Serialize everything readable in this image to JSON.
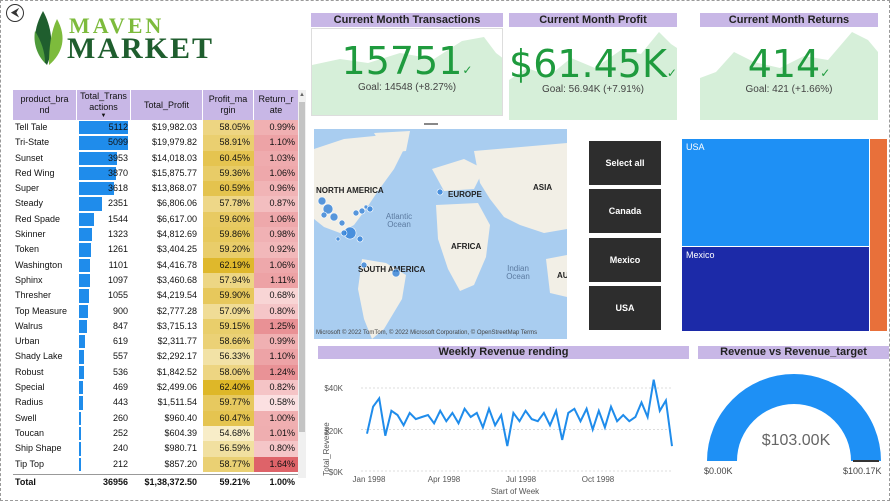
{
  "nav": {
    "back_glyph": "⮜"
  },
  "logo": {
    "line1": "MAVEN",
    "line2": "MARKET"
  },
  "table": {
    "headers": [
      "product_brand",
      "Total_Transactions",
      "Total_Profit",
      "Profit_margin",
      "Return_rate"
    ],
    "header_display": [
      "product_bra nd",
      "Total_Trans actions",
      "Total_Profit",
      "Profit_ma rgin",
      "Return_r ate"
    ],
    "sort_glyph": "▼",
    "max_transactions": 5112,
    "rows": [
      {
        "brand": "Tell Tale",
        "tx": "5112",
        "tx_num": 5112,
        "profit": "$19,982.03",
        "margin": "58.05%",
        "margin_num": 58.05,
        "ret": "0.99%",
        "ret_num": 0.99
      },
      {
        "brand": "Tri-State",
        "tx": "5099",
        "tx_num": 5099,
        "profit": "$19,979.82",
        "margin": "58.91%",
        "margin_num": 58.91,
        "ret": "1.10%",
        "ret_num": 1.1
      },
      {
        "brand": "Sunset",
        "tx": "3953",
        "tx_num": 3953,
        "profit": "$14,018.03",
        "margin": "60.45%",
        "margin_num": 60.45,
        "ret": "1.03%",
        "ret_num": 1.03
      },
      {
        "brand": "Red Wing",
        "tx": "3870",
        "tx_num": 3870,
        "profit": "$15,875.77",
        "margin": "59.36%",
        "margin_num": 59.36,
        "ret": "1.06%",
        "ret_num": 1.06
      },
      {
        "brand": "Super",
        "tx": "3618",
        "tx_num": 3618,
        "profit": "$13,868.07",
        "margin": "60.59%",
        "margin_num": 60.59,
        "ret": "0.96%",
        "ret_num": 0.96
      },
      {
        "brand": "Steady",
        "tx": "2351",
        "tx_num": 2351,
        "profit": "$6,806.06",
        "margin": "57.78%",
        "margin_num": 57.78,
        "ret": "0.87%",
        "ret_num": 0.87
      },
      {
        "brand": "Red Spade",
        "tx": "1544",
        "tx_num": 1544,
        "profit": "$6,617.00",
        "margin": "59.60%",
        "margin_num": 59.6,
        "ret": "1.06%",
        "ret_num": 1.06
      },
      {
        "brand": "Skinner",
        "tx": "1323",
        "tx_num": 1323,
        "profit": "$4,812.69",
        "margin": "59.86%",
        "margin_num": 59.86,
        "ret": "0.98%",
        "ret_num": 0.98
      },
      {
        "brand": "Token",
        "tx": "1261",
        "tx_num": 1261,
        "profit": "$3,404.25",
        "margin": "59.20%",
        "margin_num": 59.2,
        "ret": "0.92%",
        "ret_num": 0.92
      },
      {
        "brand": "Washington",
        "tx": "1101",
        "tx_num": 1101,
        "profit": "$4,416.78",
        "margin": "62.19%",
        "margin_num": 62.19,
        "ret": "1.06%",
        "ret_num": 1.06
      },
      {
        "brand": "Sphinx",
        "tx": "1097",
        "tx_num": 1097,
        "profit": "$3,460.68",
        "margin": "57.94%",
        "margin_num": 57.94,
        "ret": "1.11%",
        "ret_num": 1.11
      },
      {
        "brand": "Thresher",
        "tx": "1055",
        "tx_num": 1055,
        "profit": "$4,219.54",
        "margin": "59.90%",
        "margin_num": 59.9,
        "ret": "0.68%",
        "ret_num": 0.68
      },
      {
        "brand": "Top Measure",
        "tx": "900",
        "tx_num": 900,
        "profit": "$2,777.28",
        "margin": "57.09%",
        "margin_num": 57.09,
        "ret": "0.80%",
        "ret_num": 0.8
      },
      {
        "brand": "Walrus",
        "tx": "847",
        "tx_num": 847,
        "profit": "$3,715.13",
        "margin": "59.15%",
        "margin_num": 59.15,
        "ret": "1.25%",
        "ret_num": 1.25
      },
      {
        "brand": "Urban",
        "tx": "619",
        "tx_num": 619,
        "profit": "$2,311.77",
        "margin": "58.66%",
        "margin_num": 58.66,
        "ret": "0.99%",
        "ret_num": 0.99
      },
      {
        "brand": "Shady Lake",
        "tx": "557",
        "tx_num": 557,
        "profit": "$2,292.17",
        "margin": "56.33%",
        "margin_num": 56.33,
        "ret": "1.10%",
        "ret_num": 1.1
      },
      {
        "brand": "Robust",
        "tx": "536",
        "tx_num": 536,
        "profit": "$1,842.52",
        "margin": "58.06%",
        "margin_num": 58.06,
        "ret": "1.24%",
        "ret_num": 1.24
      },
      {
        "brand": "Special",
        "tx": "469",
        "tx_num": 469,
        "profit": "$2,499.06",
        "margin": "62.40%",
        "margin_num": 62.4,
        "ret": "0.82%",
        "ret_num": 0.82
      },
      {
        "brand": "Radius",
        "tx": "443",
        "tx_num": 443,
        "profit": "$1,511.54",
        "margin": "59.77%",
        "margin_num": 59.77,
        "ret": "0.58%",
        "ret_num": 0.58
      },
      {
        "brand": "Swell",
        "tx": "260",
        "tx_num": 260,
        "profit": "$960.40",
        "margin": "60.47%",
        "margin_num": 60.47,
        "ret": "1.00%",
        "ret_num": 1.0
      },
      {
        "brand": "Toucan",
        "tx": "252",
        "tx_num": 252,
        "profit": "$604.39",
        "margin": "54.68%",
        "margin_num": 54.68,
        "ret": "1.01%",
        "ret_num": 1.01
      },
      {
        "brand": "Ship Shape",
        "tx": "240",
        "tx_num": 240,
        "profit": "$980.71",
        "margin": "56.59%",
        "margin_num": 56.59,
        "ret": "0.80%",
        "ret_num": 0.8
      },
      {
        "brand": "Tip Top",
        "tx": "212",
        "tx_num": 212,
        "profit": "$857.20",
        "margin": "58.77%",
        "margin_num": 58.77,
        "ret": "1.64%",
        "ret_num": 1.64
      }
    ],
    "total": {
      "label": "Total",
      "tx": "36956",
      "profit": "$1,38,372.50",
      "margin": "59.21%",
      "ret": "1.00%"
    }
  },
  "kpis": [
    {
      "title": "Current Month Transactions",
      "value": "15751",
      "goal": "Goal: 14548 (+8.27%)",
      "check": "✓"
    },
    {
      "title": "Current Month Profit",
      "value": "$61.45K",
      "goal": "Goal: 56.94K (+7.91%)",
      "check": "✓"
    },
    {
      "title": "Current Month Returns",
      "value": "414",
      "goal": "Goal: 421 (+1.66%)",
      "check": "✓"
    }
  ],
  "map": {
    "labels": [
      "NORTH AMERICA",
      "EUROPE",
      "ASIA",
      "AFRICA",
      "SOUTH AMERICA",
      "AU"
    ],
    "oceans": [
      "Atlantic Ocean",
      "Indian Ocean"
    ],
    "credit": "Microsoft © 2022 TomTom, © 2022 Microsoft Corporation, © OpenStreetMap  Terms"
  },
  "slicer": {
    "options": [
      "Select all",
      "Canada",
      "Mexico",
      "USA"
    ]
  },
  "treemap": {
    "items": [
      {
        "label": "USA"
      },
      {
        "label": "Mexico"
      },
      {
        "label": ""
      }
    ]
  },
  "weekly_chart": {
    "title": "Weekly Revenue rending",
    "ylabel": "Total_Revenue",
    "xlabel": "Start of Week",
    "yticks": [
      "$0K",
      "$20K",
      "$40K"
    ],
    "xticks": [
      "Jan 1998",
      "Apr 1998",
      "Jul 1998",
      "Oct 1998"
    ]
  },
  "gauge": {
    "title": "Revenue vs Revenue_target",
    "value": "$103.00K",
    "min": "$0.00K",
    "max": "$100.17K"
  },
  "colors": {
    "accent": "#c8b7e6",
    "bar_blue": "#1f8ceb",
    "kpi_green": "#1f9b3e",
    "usa": "#1e90f5",
    "mexico": "#1c2aa8",
    "canada": "#e8703a"
  },
  "chart_data": [
    {
      "type": "line",
      "title": "Weekly Revenue rending",
      "xlabel": "Start of Week",
      "ylabel": "Total_Revenue",
      "ylim": [
        0,
        45000
      ],
      "x_range": [
        "1998-01-01",
        "1998-12-28"
      ],
      "values": [
        18000,
        31000,
        35000,
        17000,
        29000,
        27000,
        22000,
        28000,
        25000,
        26000,
        27000,
        23000,
        29000,
        24000,
        28000,
        23000,
        30000,
        26000,
        28000,
        21000,
        30000,
        22000,
        27000,
        12000,
        28000,
        24000,
        29000,
        25000,
        24000,
        28000,
        22000,
        29000,
        15000,
        28000,
        30000,
        24000,
        30000,
        20000,
        29000,
        21000,
        31000,
        24000,
        27000,
        24000,
        26000,
        33000,
        26000,
        44000,
        29000,
        34000,
        12000
      ]
    },
    {
      "type": "gauge",
      "title": "Revenue vs Revenue_target",
      "value": 103000,
      "min": 0,
      "max": 100170
    }
  ]
}
